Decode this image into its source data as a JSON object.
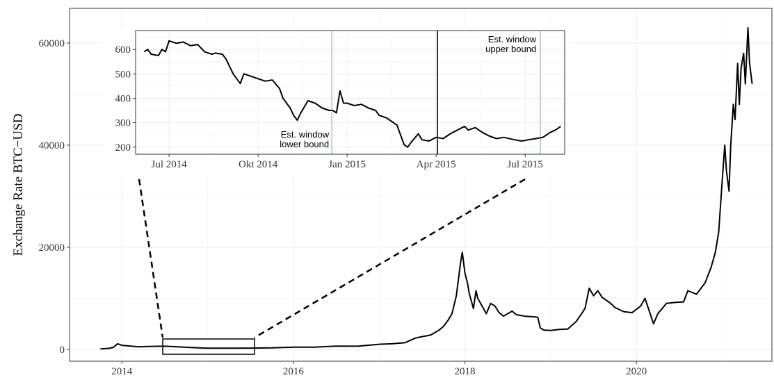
{
  "chart_data": [
    {
      "type": "line",
      "ylabel": "Exchange Rate BTC−USD",
      "xlim": [
        2013.39,
        2021.58
      ],
      "ylim": [
        -2313,
        66800
      ],
      "xticks": [
        2014,
        2016,
        2018,
        2020
      ],
      "yticks": [
        0,
        20000,
        40000,
        60000
      ],
      "xminorticks": [
        2015,
        2017,
        2019,
        2021
      ],
      "yminorticks": [
        10000,
        30000,
        50000
      ],
      "grid": true,
      "series": [
        {
          "color": "#000000",
          "x": [
            2013.75,
            2013.85,
            2013.9,
            2013.95,
            2014.0,
            2014.1,
            2014.2,
            2014.35,
            2014.5,
            2014.65,
            2014.8,
            2015.0,
            2015.25,
            2015.5,
            2015.75,
            2016.0,
            2016.25,
            2016.5,
            2016.75,
            2017.0,
            2017.15,
            2017.3,
            2017.42,
            2017.5,
            2017.6,
            2017.7,
            2017.75,
            2017.8,
            2017.85,
            2017.9,
            2017.95,
            2017.97,
            2018.0,
            2018.03,
            2018.05,
            2018.1,
            2018.13,
            2018.15,
            2018.2,
            2018.25,
            2018.3,
            2018.35,
            2018.4,
            2018.45,
            2018.55,
            2018.6,
            2018.7,
            2018.8,
            2018.85,
            2018.88,
            2018.92,
            2019.0,
            2019.1,
            2019.2,
            2019.3,
            2019.4,
            2019.45,
            2019.5,
            2019.55,
            2019.6,
            2019.7,
            2019.75,
            2019.85,
            2019.95,
            2020.05,
            2020.1,
            2020.15,
            2020.2,
            2020.25,
            2020.35,
            2020.45,
            2020.55,
            2020.6,
            2020.7,
            2020.8,
            2020.87,
            2020.92,
            2020.96,
            2021.0,
            2021.03,
            2021.05,
            2021.08,
            2021.1,
            2021.13,
            2021.15,
            2021.18,
            2021.2,
            2021.22,
            2021.25,
            2021.27,
            2021.3,
            2021.32,
            2021.35
          ],
          "values": [
            100,
            200,
            400,
            1100,
            800,
            650,
            500,
            600,
            620,
            500,
            380,
            250,
            240,
            260,
            300,
            430,
            450,
            650,
            620,
            1000,
            1100,
            1300,
            2200,
            2500,
            2800,
            3800,
            4500,
            5600,
            7000,
            10500,
            17000,
            19000,
            15000,
            13000,
            11000,
            8000,
            11500,
            10000,
            8500,
            7000,
            9000,
            8500,
            7200,
            6500,
            7500,
            6800,
            6500,
            6400,
            6300,
            4200,
            3800,
            3700,
            3900,
            4000,
            5500,
            8000,
            12000,
            10500,
            11500,
            10200,
            9000,
            8200,
            7400,
            7200,
            8500,
            10000,
            7500,
            5000,
            7000,
            9000,
            9200,
            9300,
            11500,
            10800,
            13000,
            16000,
            19000,
            23000,
            33000,
            40000,
            35000,
            31000,
            40000,
            48000,
            45000,
            56000,
            48000,
            55000,
            58000,
            52000,
            63000,
            56000,
            52000
          ]
        }
      ]
    },
    {
      "type": "line",
      "xlim": [
        2014.406,
        2015.611
      ],
      "ylim": [
        171,
        677
      ],
      "xticks": [
        {
          "value": 2014.5,
          "label": "Jul 2014"
        },
        {
          "value": 2014.75,
          "label": "Okt 2014"
        },
        {
          "value": 2015.0,
          "label": "Jan 2015"
        },
        {
          "value": 2015.25,
          "label": "Apr 2015"
        },
        {
          "value": 2015.5,
          "label": "Jul 2015"
        }
      ],
      "yticks": [
        200,
        300,
        400,
        500,
        600
      ],
      "xminorticks": [
        2014.625,
        2014.875,
        2015.125,
        2015.375
      ],
      "yminorticks": [
        250,
        350,
        450,
        550,
        650
      ],
      "grid": true,
      "vlines": [
        {
          "value": 2014.957,
          "color": "#9fd59f"
        },
        {
          "value": 2015.254,
          "color": "#000000"
        },
        {
          "value": 2015.543,
          "color": "#9fd59f"
        }
      ],
      "annotations": [
        [
          "Est. window",
          "lower bound"
        ],
        [
          "Est. window",
          "upper bound"
        ]
      ],
      "series": [
        {
          "color": "#000000",
          "x": [
            2014.43,
            2014.44,
            2014.45,
            2014.47,
            2014.48,
            2014.49,
            2014.5,
            2014.52,
            2014.54,
            2014.56,
            2014.58,
            2014.6,
            2014.62,
            2014.63,
            2014.65,
            2014.66,
            2014.68,
            2014.69,
            2014.7,
            2014.71,
            2014.73,
            2014.75,
            2014.77,
            2014.79,
            2014.81,
            2014.82,
            2014.84,
            2014.85,
            2014.86,
            2014.87,
            2014.89,
            2014.91,
            2014.93,
            2014.95,
            2014.96,
            2014.97,
            2014.98,
            2014.99,
            2015.0,
            2015.02,
            2015.04,
            2015.06,
            2015.08,
            2015.09,
            2015.11,
            2015.12,
            2015.14,
            2015.15,
            2015.16,
            2015.17,
            2015.18,
            2015.2,
            2015.21,
            2015.23,
            2015.25,
            2015.27,
            2015.29,
            2015.31,
            2015.33,
            2015.34,
            2015.36,
            2015.38,
            2015.4,
            2015.42,
            2015.44,
            2015.47,
            2015.49,
            2015.51,
            2015.53,
            2015.55,
            2015.57,
            2015.585,
            2015.6
          ],
          "values": [
            590,
            600,
            580,
            575,
            600,
            590,
            635,
            625,
            630,
            615,
            620,
            590,
            580,
            585,
            580,
            560,
            500,
            480,
            460,
            500,
            490,
            480,
            470,
            475,
            440,
            400,
            360,
            330,
            310,
            340,
            390,
            380,
            360,
            350,
            350,
            340,
            430,
            380,
            380,
            370,
            375,
            360,
            350,
            330,
            320,
            310,
            290,
            250,
            210,
            200,
            220,
            255,
            230,
            225,
            240,
            235,
            255,
            270,
            285,
            270,
            280,
            260,
            245,
            235,
            240,
            230,
            225,
            230,
            235,
            240,
            260,
            270,
            285
          ]
        }
      ]
    }
  ]
}
